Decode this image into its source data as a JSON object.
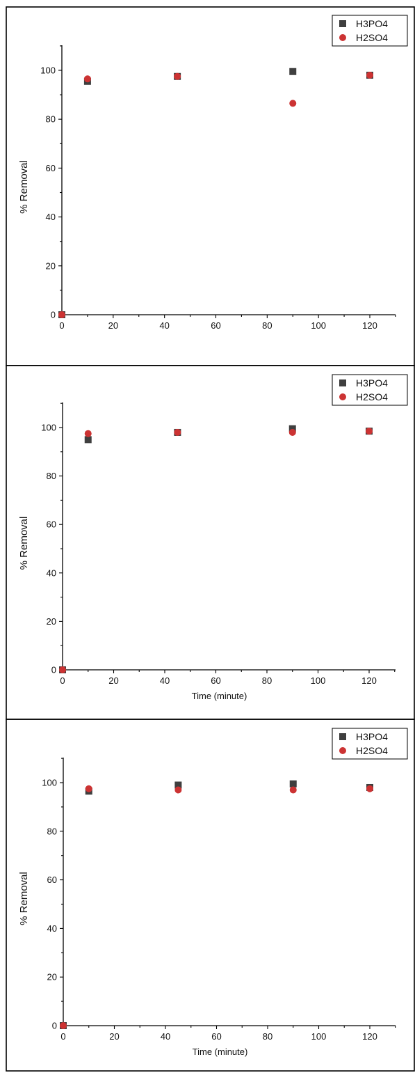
{
  "colors": {
    "h3po4": "#3f3f3f",
    "h2so4": "#cc3333"
  },
  "chart_data": [
    {
      "type": "scatter",
      "title": "",
      "xlabel": "",
      "ylabel": "% Removal",
      "xlim": [
        0,
        130
      ],
      "ylim": [
        0,
        110
      ],
      "xticks": [
        "0",
        "20",
        "40",
        "60",
        "80",
        "100",
        "120"
      ],
      "yticks": [
        "0",
        "20",
        "40",
        "60",
        "80",
        "100"
      ],
      "legend_position": "top-right",
      "grid": false,
      "series": [
        {
          "name": "H3PO4",
          "marker": "square",
          "x": [
            0,
            10,
            45,
            90,
            120
          ],
          "y": [
            0,
            95.5,
            97.5,
            99.5,
            98
          ]
        },
        {
          "name": "H2SO4",
          "marker": "circle",
          "x": [
            0,
            10,
            45,
            90,
            120
          ],
          "y": [
            0,
            96.5,
            97.5,
            86.5,
            98
          ]
        }
      ]
    },
    {
      "type": "scatter",
      "title": "",
      "xlabel": "Time (minute)",
      "ylabel": "% Removal",
      "xlim": [
        0,
        130
      ],
      "ylim": [
        0,
        110
      ],
      "xticks": [
        "0",
        "20",
        "40",
        "60",
        "80",
        "100",
        "120"
      ],
      "yticks": [
        "0",
        "20",
        "40",
        "60",
        "80",
        "100"
      ],
      "legend_position": "top-right",
      "grid": false,
      "series": [
        {
          "name": "H3PO4",
          "marker": "square",
          "x": [
            0,
            10,
            45,
            90,
            120
          ],
          "y": [
            0,
            95,
            98,
            99.5,
            98.5
          ]
        },
        {
          "name": "H2SO4",
          "marker": "circle",
          "x": [
            0,
            10,
            45,
            90,
            120
          ],
          "y": [
            0,
            97.5,
            98,
            98,
            98.5
          ]
        }
      ]
    },
    {
      "type": "scatter",
      "title": "",
      "xlabel": "Time (minute)",
      "ylabel": "% Removal",
      "xlim": [
        0,
        130
      ],
      "ylim": [
        0,
        110
      ],
      "xticks": [
        "0",
        "20",
        "40",
        "60",
        "80",
        "100",
        "120"
      ],
      "yticks": [
        "0",
        "20",
        "40",
        "60",
        "80",
        "100"
      ],
      "legend_position": "top-right",
      "grid": false,
      "series": [
        {
          "name": "H3PO4",
          "marker": "square",
          "x": [
            0,
            10,
            45,
            90,
            120
          ],
          "y": [
            0,
            96.5,
            99,
            99.5,
            98
          ]
        },
        {
          "name": "H2SO4",
          "marker": "circle",
          "x": [
            0,
            10,
            45,
            90,
            120
          ],
          "y": [
            0,
            97.5,
            97,
            97,
            97.5
          ]
        }
      ]
    }
  ]
}
